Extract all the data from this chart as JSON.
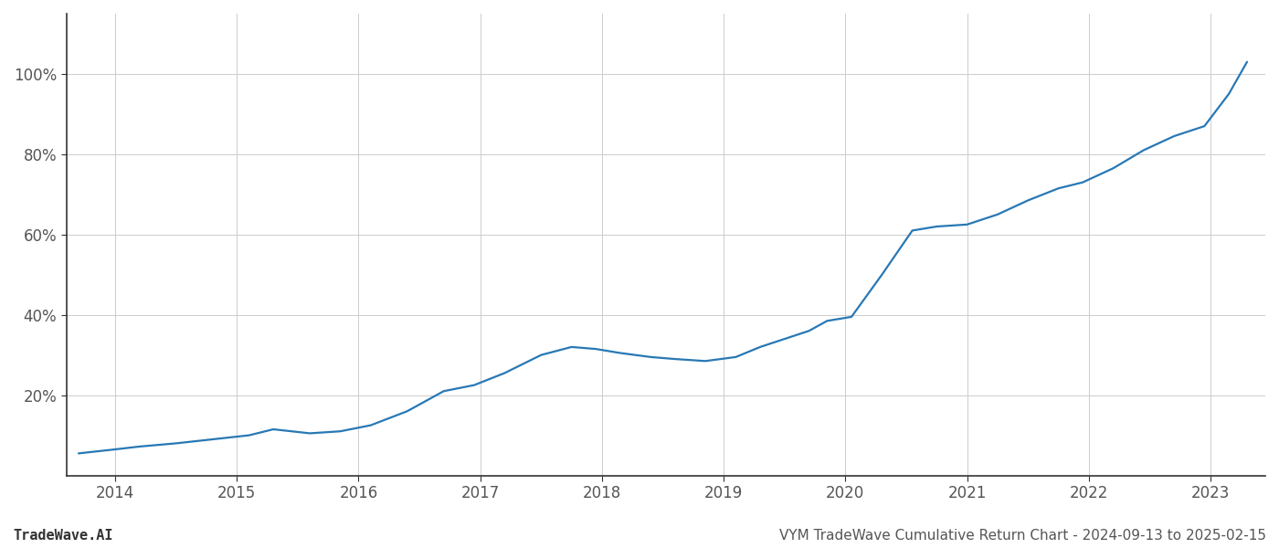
{
  "x_years": [
    2013.7,
    2014.0,
    2014.2,
    2014.5,
    2014.8,
    2015.1,
    2015.3,
    2015.6,
    2015.85,
    2016.1,
    2016.4,
    2016.7,
    2016.95,
    2017.2,
    2017.5,
    2017.75,
    2017.95,
    2018.15,
    2018.4,
    2018.6,
    2018.85,
    2019.1,
    2019.3,
    2019.55,
    2019.7,
    2019.85,
    2020.05,
    2020.3,
    2020.55,
    2020.75,
    2021.0,
    2021.25,
    2021.5,
    2021.75,
    2021.95,
    2022.2,
    2022.45,
    2022.7,
    2022.95,
    2023.15,
    2023.3
  ],
  "y_values": [
    5.5,
    6.5,
    7.2,
    8.0,
    9.0,
    10.0,
    11.5,
    10.5,
    11.0,
    12.5,
    16.0,
    21.0,
    22.5,
    25.5,
    30.0,
    32.0,
    31.5,
    30.5,
    29.5,
    29.0,
    28.5,
    29.5,
    32.0,
    34.5,
    36.0,
    38.5,
    39.5,
    50.0,
    61.0,
    62.0,
    62.5,
    65.0,
    68.5,
    71.5,
    73.0,
    76.5,
    81.0,
    84.5,
    87.0,
    95.0,
    103.0
  ],
  "line_color": "#2878b5",
  "line_width": 1.6,
  "background_color": "#ffffff",
  "grid_color": "#cccccc",
  "title": "VYM TradeWave Cumulative Return Chart - 2024-09-13 to 2025-02-15",
  "watermark": "TradeWave.AI",
  "xtick_labels": [
    "2014",
    "2015",
    "2016",
    "2017",
    "2018",
    "2019",
    "2020",
    "2021",
    "2022",
    "2023"
  ],
  "xtick_positions": [
    2014,
    2015,
    2016,
    2017,
    2018,
    2019,
    2020,
    2021,
    2022,
    2023
  ],
  "ytick_values": [
    20,
    40,
    60,
    80,
    100
  ],
  "ytick_labels": [
    "20%",
    "40%",
    "60%",
    "80%",
    "100%"
  ],
  "xlim": [
    2013.6,
    2023.45
  ],
  "ylim": [
    0,
    115
  ],
  "title_fontsize": 11,
  "watermark_fontsize": 11,
  "tick_fontsize": 12,
  "spine_color": "#333333"
}
